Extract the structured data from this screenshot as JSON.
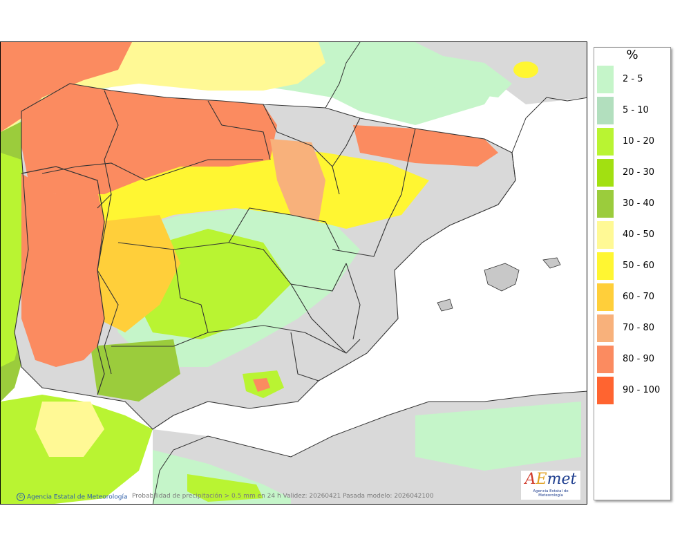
{
  "legend": {
    "title": "%",
    "items": [
      {
        "label": "2 - 5",
        "color": "#c5f5c9"
      },
      {
        "label": "5 - 10",
        "color": "#b2dfbe"
      },
      {
        "label": "10 - 20",
        "color": "#b9f432"
      },
      {
        "label": "20 - 30",
        "color": "#a2e011"
      },
      {
        "label": "30 - 40",
        "color": "#9bcc3c"
      },
      {
        "label": "40 - 50",
        "color": "#fff995"
      },
      {
        "label": "50 - 60",
        "color": "#fff632"
      },
      {
        "label": "60 - 70",
        "color": "#ffcf3a"
      },
      {
        "label": "70 - 80",
        "color": "#f8b17b"
      },
      {
        "label": "80 - 90",
        "color": "#fb8b60"
      },
      {
        "label": "90 - 100",
        "color": "#ff6430"
      }
    ]
  },
  "footer": {
    "credit": "Agencia Estatal de Meteorología",
    "caption": "Probabilidad de precipitación > 0.5 mm en 24 h Validez: 20260421 Pasada modelo: 2026042100"
  },
  "logo": {
    "text": "AEmet",
    "subtitle": "Agencia Estatal de Meteorología"
  }
}
